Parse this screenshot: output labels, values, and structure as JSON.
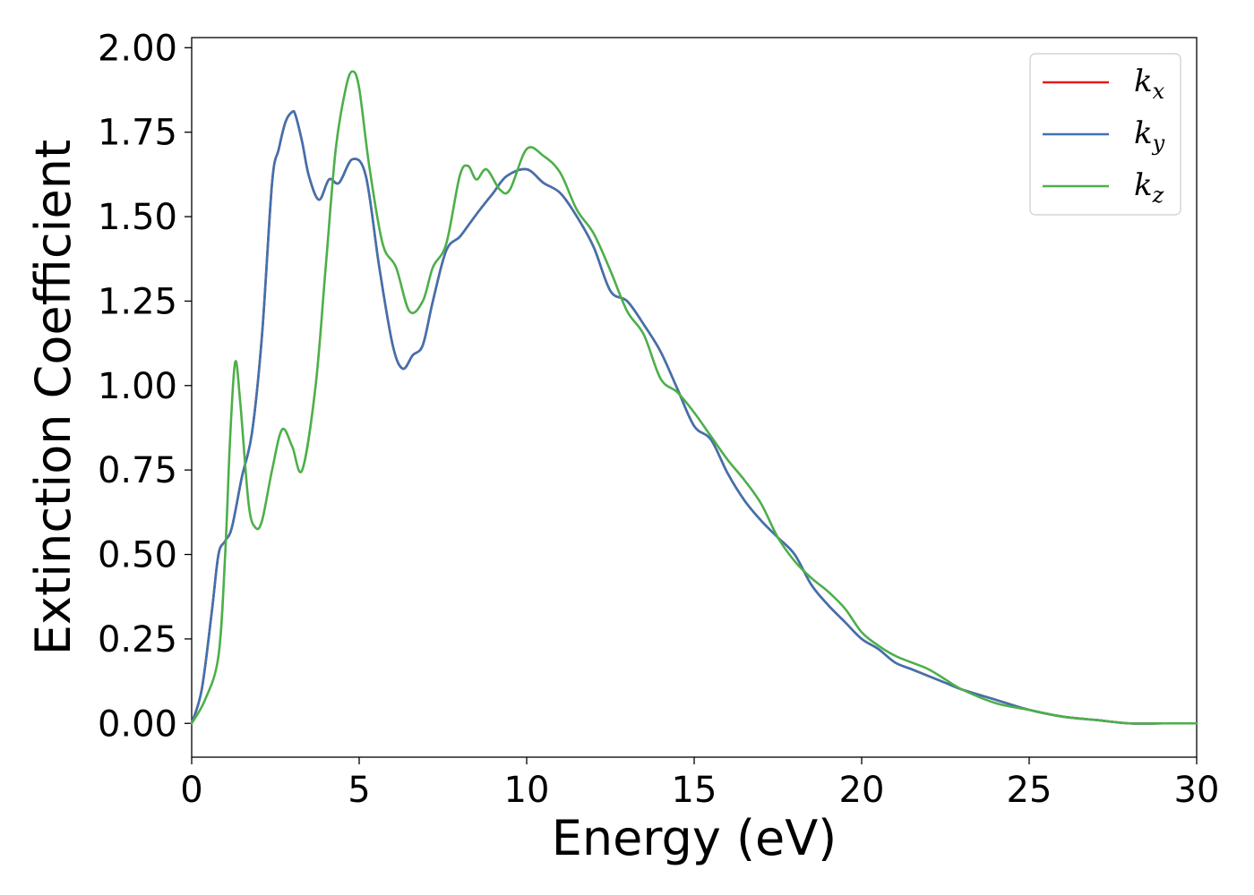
{
  "chart_data": {
    "type": "line",
    "xlabel": "Energy (eV)",
    "ylabel": "Extinction Coefficient",
    "xlim": [
      0,
      30
    ],
    "ylim": [
      -0.1,
      2.03
    ],
    "xticks": [
      "0",
      "5",
      "10",
      "15",
      "20",
      "25",
      "30"
    ],
    "yticks": [
      "0.00",
      "0.25",
      "0.50",
      "0.75",
      "1.00",
      "1.25",
      "1.50",
      "1.75",
      "2.00"
    ],
    "grid": false,
    "legend_position": "top-right",
    "series": [
      {
        "name": "k",
        "subscript": "x",
        "color": "#e41a1c",
        "x": [
          0,
          0.3,
          0.6,
          0.8,
          1.0,
          1.2,
          1.5,
          1.8,
          2.1,
          2.4,
          2.6,
          2.8,
          3.0,
          3.1,
          3.3,
          3.5,
          3.8,
          4.1,
          4.4,
          4.8,
          5.2,
          5.6,
          6.0,
          6.3,
          6.6,
          6.9,
          7.2,
          7.6,
          8.0,
          8.3,
          8.6,
          9.0,
          9.4,
          10.0,
          10.5,
          11.0,
          11.5,
          12.0,
          12.5,
          13.0,
          13.5,
          14.0,
          14.5,
          15.0,
          15.5,
          16.0,
          16.5,
          17.0,
          17.5,
          18.0,
          18.5,
          19.0,
          19.5,
          20.0,
          20.5,
          21.0,
          21.5,
          22.0,
          22.5,
          23.0,
          24.0,
          25.0,
          26.0,
          27.0,
          28.0,
          29.0,
          30.0
        ],
        "values": [
          0.0,
          0.1,
          0.33,
          0.5,
          0.54,
          0.58,
          0.73,
          0.86,
          1.15,
          1.6,
          1.7,
          1.78,
          1.81,
          1.8,
          1.72,
          1.62,
          1.55,
          1.61,
          1.6,
          1.67,
          1.62,
          1.35,
          1.12,
          1.05,
          1.09,
          1.12,
          1.25,
          1.4,
          1.44,
          1.48,
          1.52,
          1.57,
          1.62,
          1.64,
          1.6,
          1.57,
          1.5,
          1.41,
          1.28,
          1.25,
          1.18,
          1.1,
          0.99,
          0.88,
          0.84,
          0.74,
          0.66,
          0.6,
          0.55,
          0.5,
          0.41,
          0.35,
          0.3,
          0.25,
          0.22,
          0.18,
          0.16,
          0.14,
          0.12,
          0.1,
          0.07,
          0.04,
          0.02,
          0.01,
          0.0,
          0.0,
          0.0
        ]
      },
      {
        "name": "k",
        "subscript": "y",
        "color": "#3f72af",
        "x": [
          0,
          0.3,
          0.6,
          0.8,
          1.0,
          1.2,
          1.5,
          1.8,
          2.1,
          2.4,
          2.6,
          2.8,
          3.0,
          3.1,
          3.3,
          3.5,
          3.8,
          4.1,
          4.4,
          4.8,
          5.2,
          5.6,
          6.0,
          6.3,
          6.6,
          6.9,
          7.2,
          7.6,
          8.0,
          8.3,
          8.6,
          9.0,
          9.4,
          10.0,
          10.5,
          11.0,
          11.5,
          12.0,
          12.5,
          13.0,
          13.5,
          14.0,
          14.5,
          15.0,
          15.5,
          16.0,
          16.5,
          17.0,
          17.5,
          18.0,
          18.5,
          19.0,
          19.5,
          20.0,
          20.5,
          21.0,
          21.5,
          22.0,
          22.5,
          23.0,
          24.0,
          25.0,
          26.0,
          27.0,
          28.0,
          29.0,
          30.0
        ],
        "values": [
          0.0,
          0.1,
          0.33,
          0.5,
          0.54,
          0.58,
          0.73,
          0.86,
          1.15,
          1.6,
          1.7,
          1.78,
          1.81,
          1.8,
          1.72,
          1.62,
          1.55,
          1.61,
          1.6,
          1.67,
          1.62,
          1.35,
          1.12,
          1.05,
          1.09,
          1.12,
          1.25,
          1.4,
          1.44,
          1.48,
          1.52,
          1.57,
          1.62,
          1.64,
          1.6,
          1.57,
          1.5,
          1.41,
          1.28,
          1.25,
          1.18,
          1.1,
          0.99,
          0.88,
          0.84,
          0.74,
          0.66,
          0.6,
          0.55,
          0.5,
          0.41,
          0.35,
          0.3,
          0.25,
          0.22,
          0.18,
          0.16,
          0.14,
          0.12,
          0.1,
          0.07,
          0.04,
          0.02,
          0.01,
          0.0,
          0.0,
          0.0
        ]
      },
      {
        "name": "k",
        "subscript": "z",
        "color": "#4daf4a",
        "x": [
          0,
          0.4,
          0.8,
          1.0,
          1.15,
          1.3,
          1.45,
          1.7,
          1.9,
          2.1,
          2.4,
          2.7,
          3.0,
          3.3,
          3.7,
          4.0,
          4.3,
          4.6,
          4.8,
          5.0,
          5.3,
          5.7,
          6.1,
          6.5,
          6.9,
          7.2,
          7.6,
          8.0,
          8.25,
          8.5,
          8.8,
          9.2,
          9.5,
          10.0,
          10.5,
          11.0,
          11.5,
          12.0,
          12.5,
          13.0,
          13.5,
          14.0,
          14.5,
          15.0,
          15.5,
          16.0,
          16.5,
          17.0,
          17.5,
          18.0,
          18.5,
          19.0,
          19.5,
          20.0,
          20.5,
          21.0,
          21.5,
          22.0,
          22.5,
          23.0,
          24.0,
          25.0,
          26.0,
          27.0,
          28.0,
          29.0,
          30.0
        ],
        "values": [
          0.0,
          0.07,
          0.2,
          0.5,
          0.85,
          1.07,
          0.95,
          0.65,
          0.58,
          0.6,
          0.75,
          0.87,
          0.82,
          0.75,
          1.0,
          1.35,
          1.7,
          1.88,
          1.93,
          1.88,
          1.65,
          1.42,
          1.35,
          1.22,
          1.25,
          1.35,
          1.42,
          1.62,
          1.65,
          1.61,
          1.64,
          1.58,
          1.58,
          1.7,
          1.68,
          1.63,
          1.52,
          1.45,
          1.34,
          1.22,
          1.15,
          1.02,
          0.98,
          0.92,
          0.85,
          0.78,
          0.72,
          0.65,
          0.55,
          0.48,
          0.43,
          0.39,
          0.34,
          0.27,
          0.23,
          0.2,
          0.18,
          0.16,
          0.13,
          0.1,
          0.06,
          0.04,
          0.02,
          0.01,
          0.0,
          0.0,
          0.0
        ]
      }
    ]
  }
}
